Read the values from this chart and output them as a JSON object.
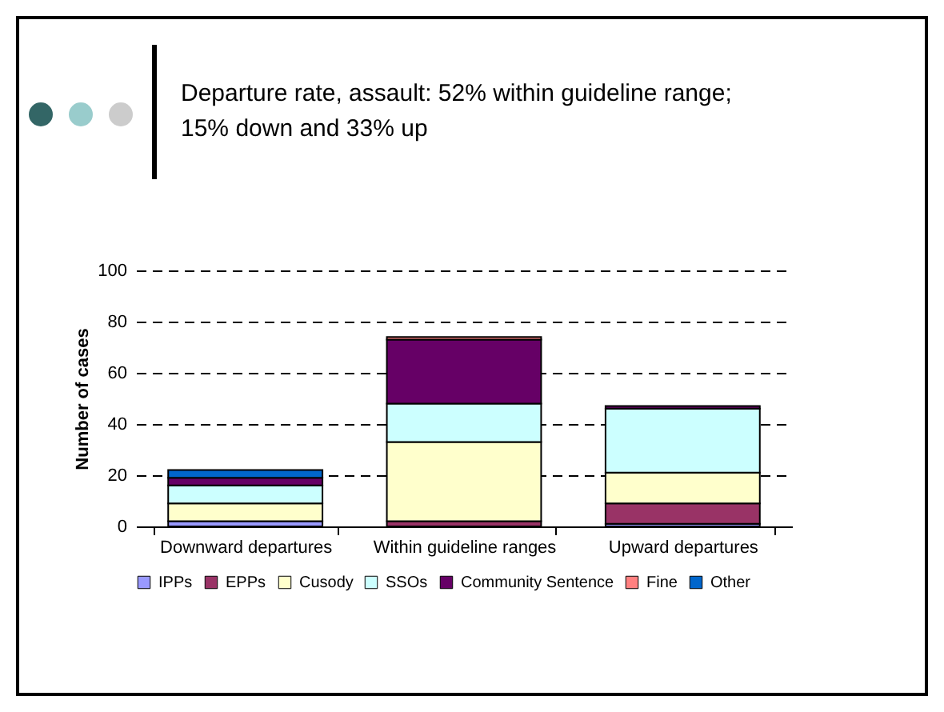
{
  "chart_data": {
    "type": "bar",
    "title": "Departure rate, assault: 52% within guideline range; 15% down and 33% up",
    "ylabel": "Number of cases",
    "categories": [
      "Downward departures",
      "Within guideline ranges",
      "Upward departures"
    ],
    "stacked": true,
    "ylim": [
      0,
      100
    ],
    "yticks": [
      0,
      20,
      40,
      60,
      80,
      100
    ],
    "grid": "y",
    "line_style": "dashed",
    "legend": "bottom",
    "series": [
      {
        "name": "IPPs",
        "color": "#9999ff",
        "values": [
          2,
          0,
          1
        ]
      },
      {
        "name": "EPPs",
        "color": "#993366",
        "values": [
          0,
          2,
          8
        ]
      },
      {
        "name": "Cusody",
        "color": "#ffffcc",
        "values": [
          7,
          31,
          12
        ]
      },
      {
        "name": "SSOs",
        "color": "#ccffff",
        "values": [
          7,
          15,
          25
        ]
      },
      {
        "name": "Community Sentence",
        "color": "#660066",
        "values": [
          3,
          25,
          1
        ]
      },
      {
        "name": "Fine",
        "color": "#ff8080",
        "values": [
          null,
          1,
          0
        ]
      },
      {
        "name": "Other",
        "color": "#0066cc",
        "values": [
          3,
          0,
          0
        ]
      }
    ]
  }
}
